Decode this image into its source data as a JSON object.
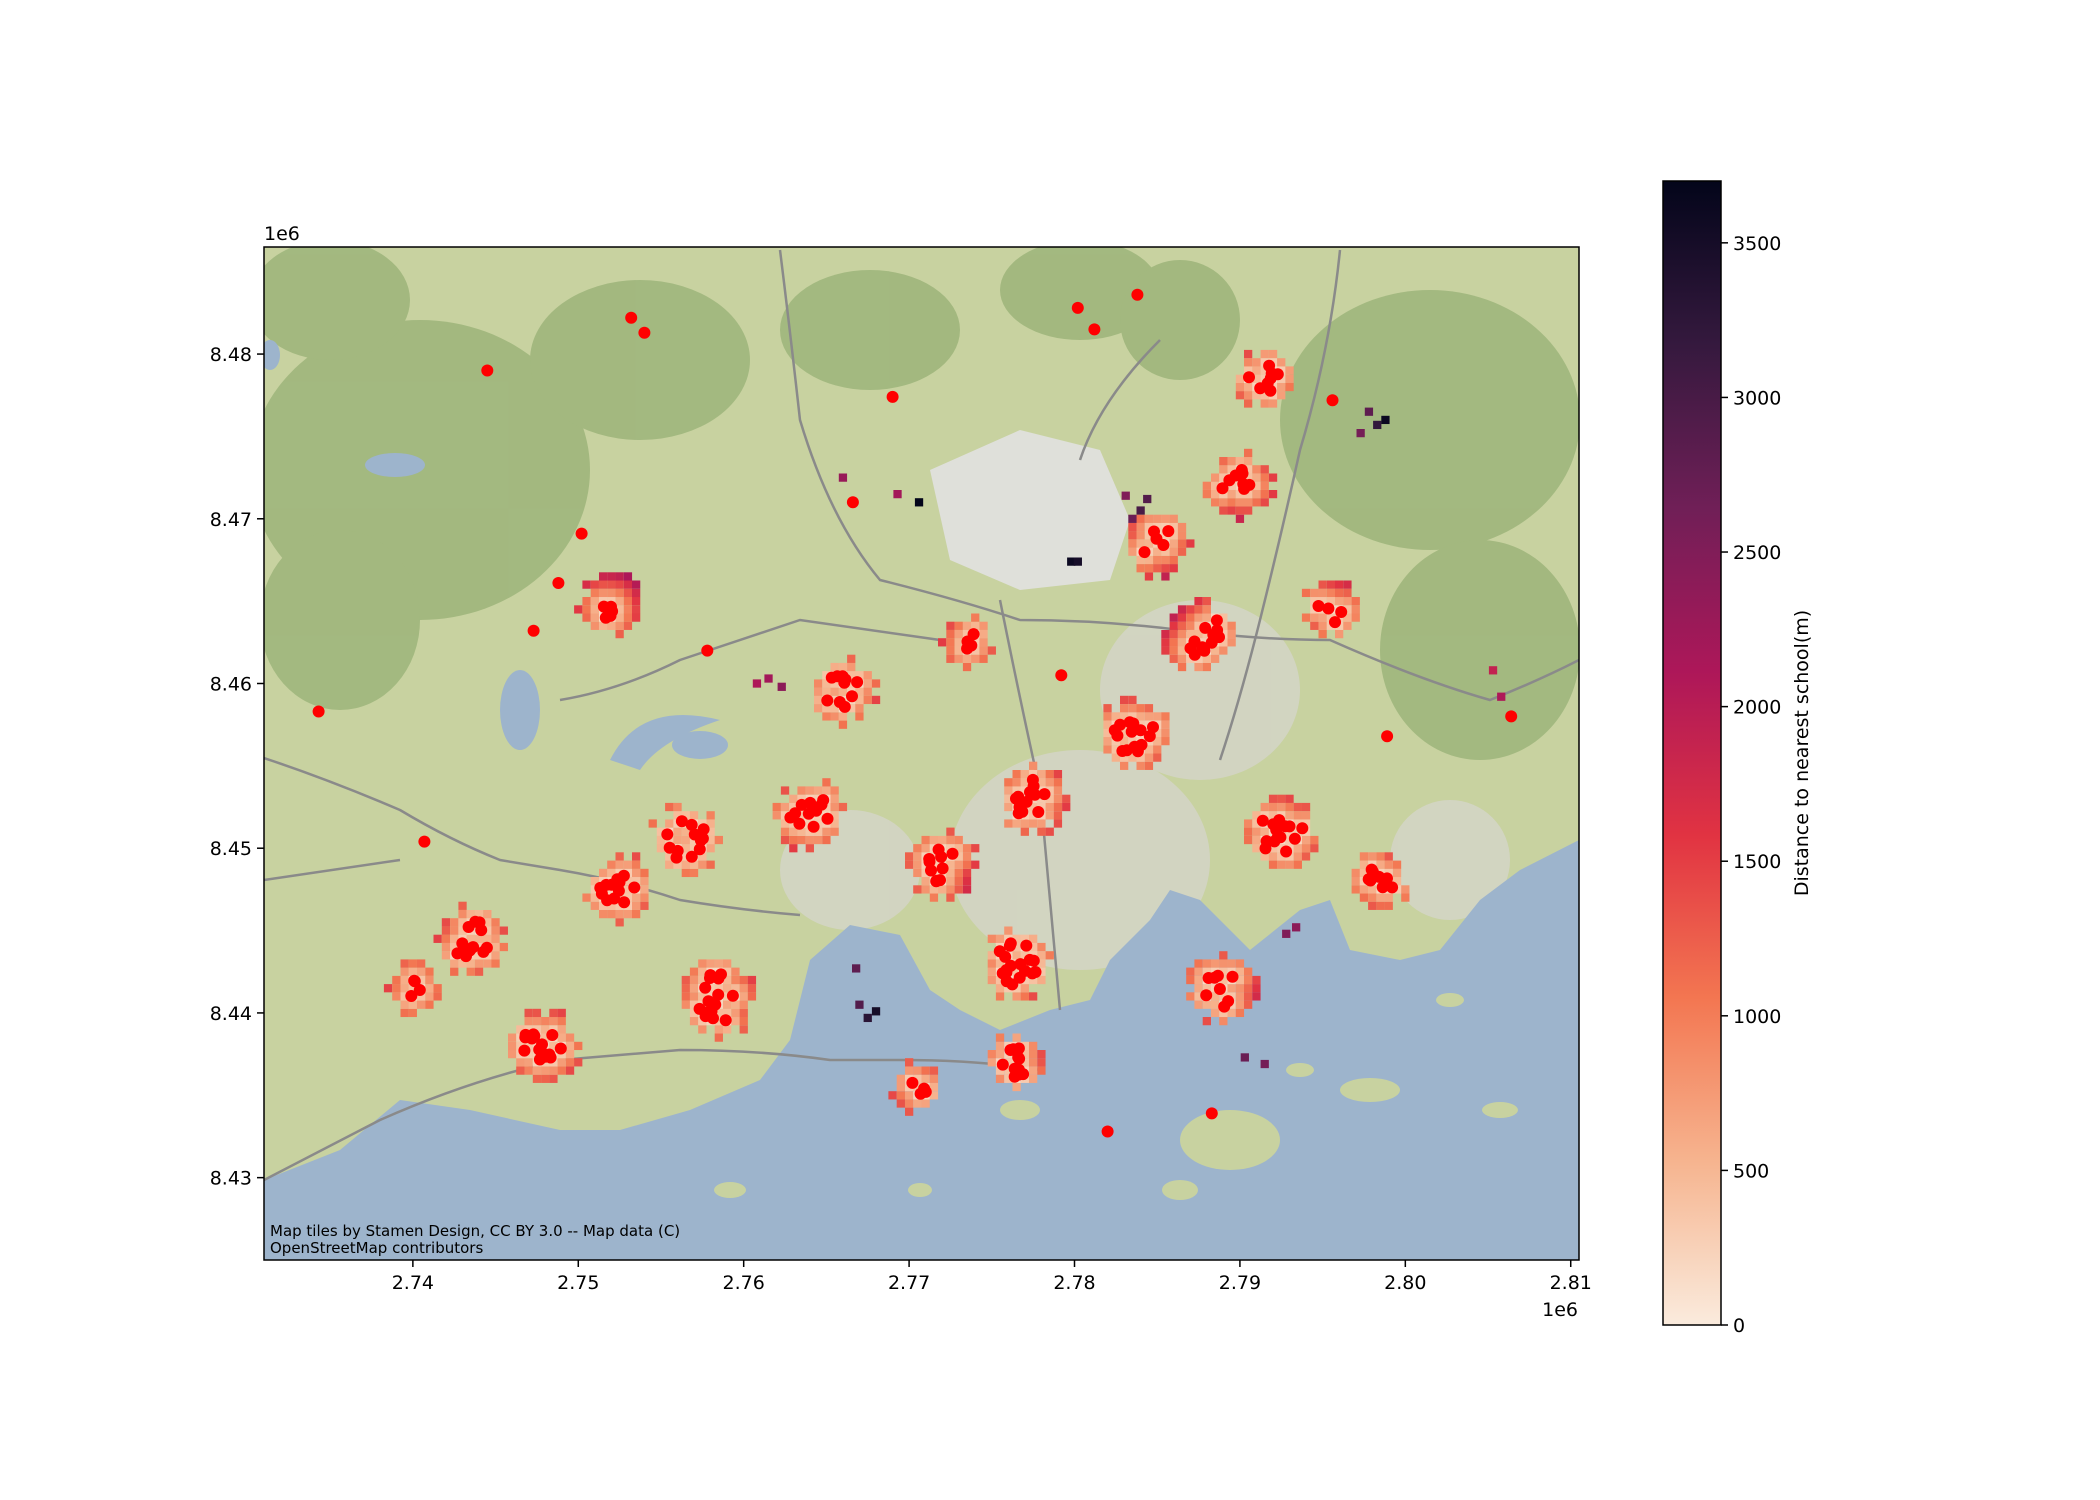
{
  "chart_data": {
    "type": "heatmap",
    "title": "",
    "xlabel": "",
    "ylabel": "",
    "xlim": [
      2731000,
      2810500
    ],
    "ylim": [
      8425000,
      8486500
    ],
    "x_ticks": [
      2740000,
      2750000,
      2760000,
      2770000,
      2780000,
      2790000,
      2800000,
      2810000
    ],
    "x_tick_labels": [
      "2.74",
      "2.75",
      "2.76",
      "2.77",
      "2.78",
      "2.79",
      "2.80",
      "2.81"
    ],
    "x_offset_label": "1e6",
    "y_ticks": [
      8430000,
      8440000,
      8450000,
      8460000,
      8470000,
      8480000
    ],
    "y_tick_labels": [
      "8.43",
      "8.44",
      "8.45",
      "8.46",
      "8.47",
      "8.48"
    ],
    "y_offset_label": "1e6",
    "grid": false,
    "basemap_attribution": "Map tiles by Stamen Design, CC BY 3.0 -- Map data (C) OpenStreetMap contributors",
    "colorbar": {
      "label": "Distance to nearest school(m)",
      "min": 0,
      "max": 3700,
      "ticks": [
        0,
        500,
        1000,
        1500,
        2000,
        2500,
        3000,
        3500
      ],
      "tick_labels": [
        "0",
        "500",
        "1000",
        "1500",
        "2000",
        "2500",
        "3000",
        "3500"
      ],
      "colormap": [
        "#faebdd",
        "#f6b48f",
        "#f37651",
        "#e13342",
        "#ad1759",
        "#701f57",
        "#35193e",
        "#03051a"
      ]
    },
    "school_marker_color": "#ff0000",
    "school_clusters": [
      {
        "x": 2743500,
        "y": 8444500,
        "n": 14,
        "s": 1200
      },
      {
        "x": 2748000,
        "y": 8438000,
        "n": 16,
        "s": 1400
      },
      {
        "x": 2752500,
        "y": 8447500,
        "n": 12,
        "s": 1200
      },
      {
        "x": 2756500,
        "y": 8450500,
        "n": 12,
        "s": 1300
      },
      {
        "x": 2758500,
        "y": 8441000,
        "n": 16,
        "s": 1500
      },
      {
        "x": 2764000,
        "y": 8452000,
        "n": 12,
        "s": 1300
      },
      {
        "x": 2766000,
        "y": 8459500,
        "n": 10,
        "s": 1100
      },
      {
        "x": 2772000,
        "y": 8449000,
        "n": 10,
        "s": 1300
      },
      {
        "x": 2776500,
        "y": 8443000,
        "n": 18,
        "s": 1300
      },
      {
        "x": 2776500,
        "y": 8437000,
        "n": 12,
        "s": 900
      },
      {
        "x": 2777500,
        "y": 8453000,
        "n": 12,
        "s": 1300
      },
      {
        "x": 2783500,
        "y": 8457000,
        "n": 14,
        "s": 1300
      },
      {
        "x": 2787500,
        "y": 8463000,
        "n": 12,
        "s": 1400
      },
      {
        "x": 2792500,
        "y": 8451000,
        "n": 14,
        "s": 1400
      },
      {
        "x": 2791500,
        "y": 8478500,
        "n": 8,
        "s": 1000
      },
      {
        "x": 2790000,
        "y": 8472000,
        "n": 8,
        "s": 1100
      },
      {
        "x": 2798500,
        "y": 8448000,
        "n": 8,
        "s": 900
      },
      {
        "x": 2789000,
        "y": 8441500,
        "n": 8,
        "s": 1200
      },
      {
        "x": 2770500,
        "y": 8435500,
        "n": 4,
        "s": 600
      },
      {
        "x": 2785000,
        "y": 8468500,
        "n": 5,
        "s": 1100
      },
      {
        "x": 2773500,
        "y": 8462500,
        "n": 4,
        "s": 700
      },
      {
        "x": 2740000,
        "y": 8441500,
        "n": 4,
        "s": 700
      },
      {
        "x": 2752000,
        "y": 8465000,
        "n": 5,
        "s": 1100
      },
      {
        "x": 2795500,
        "y": 8464500,
        "n": 4,
        "s": 900
      }
    ],
    "school_points": [
      [
        2744500,
        8479000
      ],
      [
        2753200,
        8482200
      ],
      [
        2754000,
        8481300
      ],
      [
        2769000,
        8477400
      ],
      [
        2780200,
        8482800
      ],
      [
        2781200,
        8481500
      ],
      [
        2783800,
        8483600
      ],
      [
        2734300,
        8458300
      ],
      [
        2747300,
        8463200
      ],
      [
        2748800,
        8466100
      ],
      [
        2750200,
        8469100
      ],
      [
        2806400,
        8458000
      ],
      [
        2798900,
        8456800
      ],
      [
        2782000,
        8432800
      ],
      [
        2788300,
        8433900
      ],
      [
        2766600,
        8471000
      ],
      [
        2757800,
        8462000
      ],
      [
        2740700,
        8450400
      ],
      [
        2795600,
        8477200
      ],
      [
        2779200,
        8460500
      ]
    ],
    "grid_cells": [
      {
        "x": 2805300,
        "y": 8460800,
        "v": 1900
      },
      {
        "x": 2805800,
        "y": 8459200,
        "v": 2100
      },
      {
        "x": 2797800,
        "y": 8476500,
        "v": 2800
      },
      {
        "x": 2798300,
        "y": 8475700,
        "v": 3200
      },
      {
        "x": 2798800,
        "y": 8476000,
        "v": 3600
      },
      {
        "x": 2797300,
        "y": 8475200,
        "v": 2600
      },
      {
        "x": 2779800,
        "y": 8467400,
        "v": 3600
      },
      {
        "x": 2780200,
        "y": 8467400,
        "v": 3500
      },
      {
        "x": 2770600,
        "y": 8471000,
        "v": 3700
      },
      {
        "x": 2769300,
        "y": 8471500,
        "v": 2200
      },
      {
        "x": 2784000,
        "y": 8470500,
        "v": 3000
      },
      {
        "x": 2783500,
        "y": 8470000,
        "v": 2700
      },
      {
        "x": 2784400,
        "y": 8471200,
        "v": 2900
      },
      {
        "x": 2783100,
        "y": 8471400,
        "v": 2500
      },
      {
        "x": 2767500,
        "y": 8439700,
        "v": 3300
      },
      {
        "x": 2768000,
        "y": 8440100,
        "v": 3500
      },
      {
        "x": 2767000,
        "y": 8440500,
        "v": 2900
      },
      {
        "x": 2766800,
        "y": 8442700,
        "v": 2800
      },
      {
        "x": 2762300,
        "y": 8459800,
        "v": 2400
      },
      {
        "x": 2761500,
        "y": 8460300,
        "v": 2200
      },
      {
        "x": 2760800,
        "y": 8460000,
        "v": 2100
      },
      {
        "x": 2766000,
        "y": 8472500,
        "v": 2300
      },
      {
        "x": 2792800,
        "y": 8444800,
        "v": 2500
      },
      {
        "x": 2793400,
        "y": 8445200,
        "v": 2400
      },
      {
        "x": 2791500,
        "y": 8436900,
        "v": 2600
      },
      {
        "x": 2790300,
        "y": 8437300,
        "v": 2700
      }
    ]
  }
}
